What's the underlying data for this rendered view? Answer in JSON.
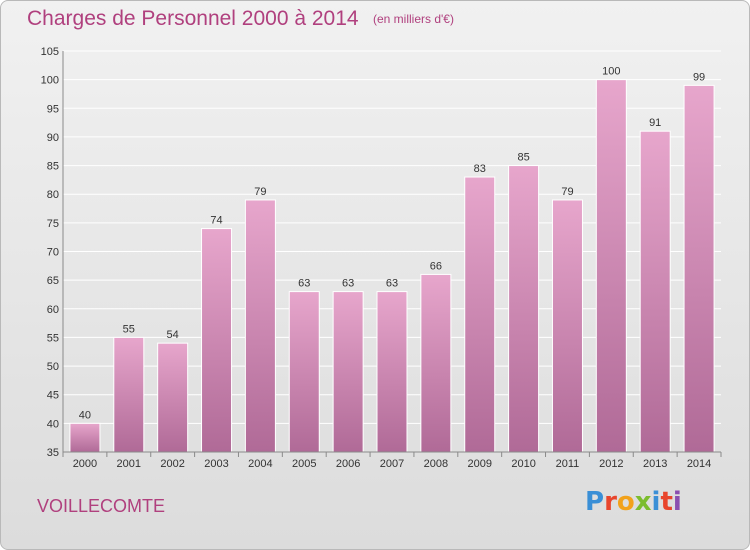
{
  "header": {
    "title": "Charges de Personnel 2000 à 2014",
    "subtitle": "(en milliers d'€)"
  },
  "footer": {
    "commune": "VOILLECOMTE",
    "logo": {
      "text": "Proxiti",
      "letter_colors": [
        "#3a8fd6",
        "#e8452c",
        "#f2a21b",
        "#7cbd2e",
        "#3a8fd6",
        "#e8452c",
        "#8a4fb0"
      ]
    }
  },
  "colors": {
    "accent": "#b0407e",
    "bar_top": "#e7a6cc",
    "bar_bottom": "#b06a97"
  },
  "chart_data": {
    "type": "bar",
    "title": "Charges de Personnel 2000 à 2014",
    "subtitle": "(en milliers d'€)",
    "xlabel": "",
    "ylabel": "",
    "ylim": [
      35,
      105
    ],
    "yticks": [
      35,
      40,
      45,
      50,
      55,
      60,
      65,
      70,
      75,
      80,
      85,
      90,
      95,
      100,
      105
    ],
    "grid": true,
    "categories": [
      "2000",
      "2001",
      "2002",
      "2003",
      "2004",
      "2005",
      "2006",
      "2007",
      "2008",
      "2009",
      "2010",
      "2011",
      "2012",
      "2013",
      "2014"
    ],
    "values": [
      40,
      55,
      54,
      74,
      79,
      63,
      63,
      63,
      66,
      83,
      85,
      79,
      100,
      91,
      99
    ]
  }
}
